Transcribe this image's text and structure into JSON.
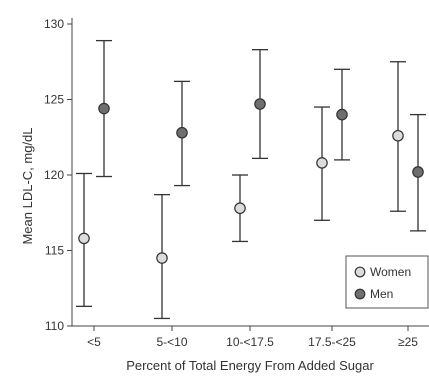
{
  "chart_data": {
    "type": "scatter",
    "title": "",
    "xlabel": "Percent of Total Energy From Added Sugar",
    "ylabel": "Mean LDL-C, mg/dL",
    "categories": [
      "<5",
      "5-<10",
      "10-<17.5",
      "17.5-<25",
      "≥25"
    ],
    "ylim": [
      110,
      130
    ],
    "yticks": [
      110,
      115,
      120,
      125,
      130
    ],
    "grid": false,
    "legend_position": "bottom-right",
    "error_bars": true,
    "series": [
      {
        "name": "Women",
        "color": "#dcdcdc",
        "values": [
          115.8,
          114.5,
          117.8,
          120.8,
          122.6
        ],
        "lower": [
          111.3,
          110.5,
          115.6,
          117.0,
          117.6
        ],
        "upper": [
          120.1,
          118.7,
          120.0,
          124.5,
          127.5
        ]
      },
      {
        "name": "Men",
        "color": "#6e6e6e",
        "values": [
          124.4,
          122.8,
          124.7,
          124.0,
          120.2
        ],
        "lower": [
          119.9,
          119.3,
          121.1,
          121.0,
          116.3
        ],
        "upper": [
          128.9,
          126.2,
          128.3,
          127.0,
          124.0
        ]
      }
    ]
  }
}
